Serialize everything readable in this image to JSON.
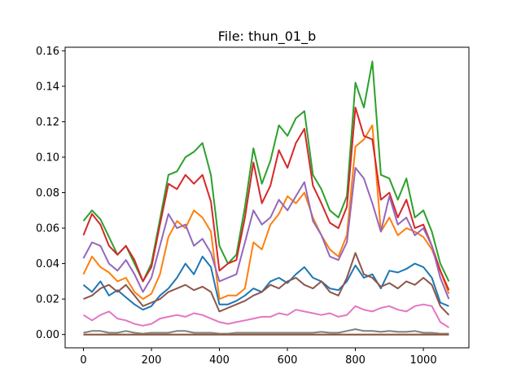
{
  "chart_data": {
    "type": "line",
    "title": "File: thun_01_b",
    "xlabel": "",
    "ylabel": "",
    "xlim": [
      -54,
      1134
    ],
    "ylim": [
      -0.0075,
      0.162
    ],
    "x_ticks": [
      0,
      200,
      400,
      600,
      800,
      1000
    ],
    "y_ticks": [
      0.0,
      0.02,
      0.04,
      0.06,
      0.08,
      0.1,
      0.12,
      0.14,
      0.16
    ],
    "y_tick_labels": [
      "0.00",
      "0.02",
      "0.04",
      "0.06",
      "0.08",
      "0.10",
      "0.12",
      "0.14",
      "0.16"
    ],
    "grid": false,
    "legend": "none",
    "x": [
      0,
      25,
      50,
      75,
      100,
      125,
      150,
      175,
      200,
      225,
      250,
      275,
      300,
      325,
      350,
      375,
      400,
      425,
      450,
      475,
      500,
      525,
      550,
      575,
      600,
      625,
      650,
      675,
      700,
      725,
      750,
      775,
      800,
      825,
      850,
      875,
      900,
      925,
      950,
      975,
      1000,
      1025,
      1050,
      1075
    ],
    "series": [
      {
        "color": "#1f77b4",
        "values": [
          0.028,
          0.024,
          0.03,
          0.022,
          0.025,
          0.021,
          0.017,
          0.014,
          0.016,
          0.022,
          0.026,
          0.032,
          0.04,
          0.034,
          0.044,
          0.038,
          0.017,
          0.017,
          0.019,
          0.022,
          0.026,
          0.024,
          0.03,
          0.032,
          0.029,
          0.034,
          0.038,
          0.032,
          0.03,
          0.026,
          0.025,
          0.03,
          0.039,
          0.032,
          0.034,
          0.026,
          0.036,
          0.035,
          0.037,
          0.04,
          0.038,
          0.032,
          0.018,
          0.016
        ]
      },
      {
        "color": "#ff7f0e",
        "values": [
          0.034,
          0.044,
          0.038,
          0.035,
          0.03,
          0.032,
          0.024,
          0.02,
          0.023,
          0.034,
          0.055,
          0.064,
          0.06,
          0.07,
          0.066,
          0.058,
          0.02,
          0.022,
          0.022,
          0.026,
          0.052,
          0.048,
          0.062,
          0.068,
          0.078,
          0.074,
          0.08,
          0.066,
          0.056,
          0.048,
          0.044,
          0.056,
          0.106,
          0.11,
          0.118,
          0.058,
          0.066,
          0.056,
          0.06,
          0.058,
          0.055,
          0.048,
          0.036,
          0.023
        ]
      },
      {
        "color": "#2ca02c",
        "values": [
          0.064,
          0.07,
          0.065,
          0.055,
          0.045,
          0.05,
          0.04,
          0.03,
          0.04,
          0.065,
          0.09,
          0.092,
          0.1,
          0.103,
          0.108,
          0.09,
          0.05,
          0.04,
          0.045,
          0.072,
          0.105,
          0.085,
          0.098,
          0.118,
          0.112,
          0.122,
          0.126,
          0.09,
          0.082,
          0.07,
          0.066,
          0.078,
          0.142,
          0.128,
          0.154,
          0.09,
          0.088,
          0.076,
          0.088,
          0.066,
          0.07,
          0.058,
          0.04,
          0.03
        ]
      },
      {
        "color": "#d62728",
        "values": [
          0.056,
          0.068,
          0.062,
          0.05,
          0.045,
          0.05,
          0.042,
          0.03,
          0.038,
          0.062,
          0.085,
          0.082,
          0.09,
          0.085,
          0.09,
          0.075,
          0.036,
          0.04,
          0.042,
          0.066,
          0.097,
          0.074,
          0.084,
          0.104,
          0.094,
          0.108,
          0.116,
          0.084,
          0.074,
          0.063,
          0.06,
          0.072,
          0.128,
          0.112,
          0.11,
          0.076,
          0.08,
          0.066,
          0.076,
          0.06,
          0.062,
          0.05,
          0.036,
          0.025
        ]
      },
      {
        "color": "#9467bd",
        "values": [
          0.043,
          0.052,
          0.05,
          0.04,
          0.036,
          0.042,
          0.034,
          0.024,
          0.032,
          0.05,
          0.068,
          0.06,
          0.062,
          0.05,
          0.054,
          0.046,
          0.03,
          0.032,
          0.034,
          0.052,
          0.07,
          0.062,
          0.066,
          0.076,
          0.07,
          0.078,
          0.086,
          0.064,
          0.056,
          0.044,
          0.042,
          0.052,
          0.094,
          0.088,
          0.074,
          0.058,
          0.078,
          0.062,
          0.066,
          0.056,
          0.06,
          0.05,
          0.032,
          0.02
        ]
      },
      {
        "color": "#8c564b",
        "values": [
          0.02,
          0.022,
          0.026,
          0.028,
          0.024,
          0.028,
          0.022,
          0.016,
          0.018,
          0.02,
          0.024,
          0.026,
          0.028,
          0.025,
          0.027,
          0.024,
          0.013,
          0.015,
          0.017,
          0.019,
          0.022,
          0.024,
          0.028,
          0.026,
          0.03,
          0.032,
          0.028,
          0.026,
          0.03,
          0.024,
          0.022,
          0.032,
          0.046,
          0.034,
          0.032,
          0.027,
          0.029,
          0.026,
          0.03,
          0.028,
          0.032,
          0.028,
          0.016,
          0.011
        ]
      },
      {
        "color": "#e377c2",
        "values": [
          0.011,
          0.008,
          0.011,
          0.013,
          0.009,
          0.008,
          0.006,
          0.005,
          0.006,
          0.009,
          0.01,
          0.011,
          0.01,
          0.012,
          0.011,
          0.009,
          0.007,
          0.006,
          0.007,
          0.008,
          0.009,
          0.01,
          0.01,
          0.012,
          0.011,
          0.014,
          0.013,
          0.012,
          0.011,
          0.012,
          0.01,
          0.011,
          0.016,
          0.014,
          0.013,
          0.015,
          0.016,
          0.014,
          0.013,
          0.016,
          0.017,
          0.016,
          0.007,
          0.004
        ]
      },
      {
        "color": "#7f7f7f",
        "values": [
          0.001,
          0.002,
          0.002,
          0.001,
          0.001,
          0.002,
          0.001,
          0.0005,
          0.001,
          0.001,
          0.001,
          0.002,
          0.002,
          0.001,
          0.001,
          0.001,
          0.0005,
          0.0005,
          0.001,
          0.001,
          0.001,
          0.001,
          0.001,
          0.001,
          0.001,
          0.001,
          0.001,
          0.001,
          0.0015,
          0.001,
          0.001,
          0.002,
          0.003,
          0.002,
          0.002,
          0.0015,
          0.002,
          0.0015,
          0.0015,
          0.002,
          0.001,
          0.001,
          0.0005,
          0.0005
        ]
      },
      {
        "color": "#bcbd22",
        "values": [
          0.0,
          0.0,
          0.0,
          0.0,
          0.0,
          0.0,
          0.0,
          0.0,
          0.0,
          0.0,
          0.0,
          0.0,
          0.0,
          0.0,
          0.0,
          0.0,
          0.0,
          0.0,
          0.0,
          0.0,
          0.0,
          0.0,
          0.0,
          0.0,
          0.0,
          0.0,
          0.0,
          0.0,
          0.0,
          0.0,
          0.0,
          0.0,
          0.0,
          0.0,
          0.0,
          0.0,
          0.0,
          0.0,
          0.0,
          0.0,
          0.0,
          0.0,
          0.0,
          0.0
        ]
      },
      {
        "color": "#8c564b",
        "values": [
          0.0,
          0.0,
          0.0,
          0.0,
          0.0,
          0.0,
          0.0,
          0.0,
          0.0,
          0.0,
          0.0,
          0.0,
          0.0,
          0.0,
          0.0,
          0.0,
          0.0,
          0.0,
          0.0,
          0.0,
          0.0,
          0.0,
          0.0,
          0.0,
          0.0,
          0.0,
          0.0,
          0.0,
          0.0,
          0.0,
          0.0,
          0.0,
          0.0,
          0.0,
          0.0,
          0.0,
          0.0,
          0.0,
          0.0,
          0.0,
          0.0,
          0.0,
          0.0,
          0.0
        ]
      }
    ]
  }
}
